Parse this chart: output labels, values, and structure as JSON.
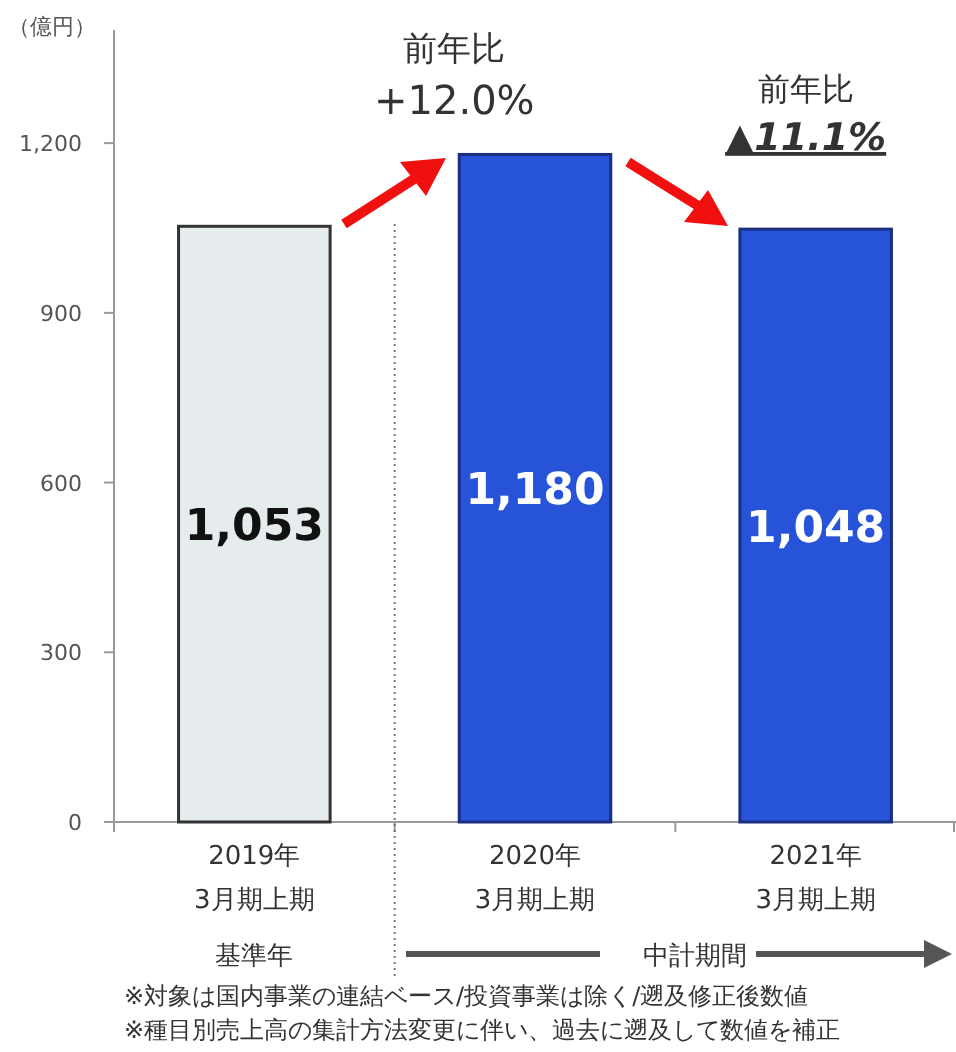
{
  "chart_data": {
    "type": "bar",
    "ylabel": "（億円）",
    "categories": [
      "2019年\n3月期上期",
      "2020年\n3月期上期",
      "2021年\n3月期上期"
    ],
    "values": [
      1053,
      1180,
      1048
    ],
    "colors": [
      "#e6ecee",
      "#2753d8",
      "#2753d8"
    ],
    "value_labels": [
      "1,053",
      "1,180",
      "1,048"
    ],
    "ylim": [
      0,
      1400
    ],
    "yticks": [
      0,
      300,
      600,
      900,
      {
        "value": 1200,
        "label": "1,200"
      }
    ],
    "grid": false,
    "annotations": [
      "前年比\n+12.0%",
      "前年比\n▲11.1%",
      "基準年",
      "中計期間",
      "※対象は国内事業の連結ベース/投資事業は除く/遡及修正後数値",
      "※種目別売上高の集計方法変更に伴い、過去に遡及して数値を補正"
    ]
  }
}
